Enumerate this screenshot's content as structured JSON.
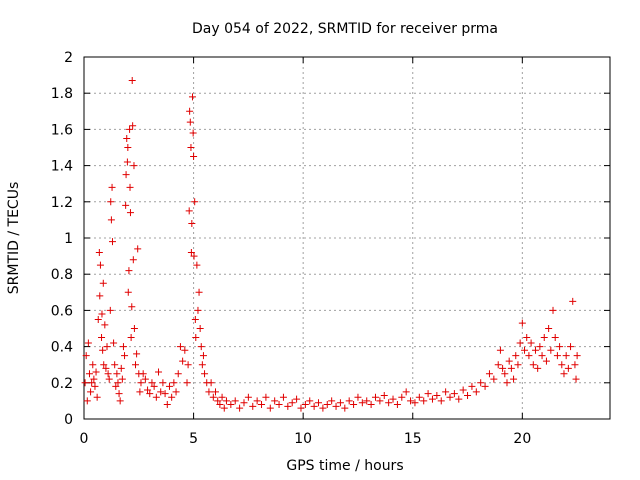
{
  "chart_data": {
    "type": "scatter",
    "title": "Day 054 of 2022, SRMTID for receiver prma",
    "xlabel": "GPS time / hours",
    "ylabel": "SRMTID / TECUs",
    "xlim": [
      0,
      24
    ],
    "ylim": [
      0,
      2
    ],
    "xticks": [
      0,
      5,
      10,
      15,
      20
    ],
    "xtick_labels": [
      "0",
      "5",
      "10",
      "15",
      "20"
    ],
    "yticks": [
      0,
      0.2,
      0.4,
      0.6,
      0.8,
      1,
      1.2,
      1.4,
      1.6,
      1.8,
      2
    ],
    "ytick_labels": [
      "0",
      "0.2",
      "0.4",
      "0.6",
      "0.8",
      "1",
      "1.2",
      "1.4",
      "1.6",
      "1.8",
      "2"
    ],
    "grid": true,
    "marker": "+",
    "colors": {
      "series": "#e00000"
    },
    "series": [
      {
        "name": "SRMTID",
        "points": [
          [
            0.05,
            0.2
          ],
          [
            0.1,
            0.35
          ],
          [
            0.15,
            0.1
          ],
          [
            0.2,
            0.42
          ],
          [
            0.25,
            0.25
          ],
          [
            0.3,
            0.15
          ],
          [
            0.35,
            0.2
          ],
          [
            0.4,
            0.3
          ],
          [
            0.45,
            0.22
          ],
          [
            0.5,
            0.18
          ],
          [
            0.55,
            0.26
          ],
          [
            0.6,
            0.12
          ],
          [
            0.65,
            0.55
          ],
          [
            0.7,
            0.92
          ],
          [
            0.72,
            0.68
          ],
          [
            0.75,
            0.85
          ],
          [
            0.8,
            0.45
          ],
          [
            0.82,
            0.58
          ],
          [
            0.85,
            0.38
          ],
          [
            0.88,
            0.75
          ],
          [
            0.9,
            0.3
          ],
          [
            0.95,
            0.52
          ],
          [
            1.0,
            0.28
          ],
          [
            1.05,
            0.4
          ],
          [
            1.1,
            0.25
          ],
          [
            1.15,
            0.22
          ],
          [
            1.2,
            0.6
          ],
          [
            1.22,
            1.2
          ],
          [
            1.25,
            1.1
          ],
          [
            1.28,
            1.28
          ],
          [
            1.3,
            0.98
          ],
          [
            1.35,
            0.42
          ],
          [
            1.4,
            0.3
          ],
          [
            1.45,
            0.18
          ],
          [
            1.5,
            0.25
          ],
          [
            1.55,
            0.2
          ],
          [
            1.6,
            0.14
          ],
          [
            1.65,
            0.1
          ],
          [
            1.7,
            0.28
          ],
          [
            1.75,
            0.22
          ],
          [
            1.8,
            0.4
          ],
          [
            1.85,
            0.35
          ],
          [
            1.9,
            1.18
          ],
          [
            1.92,
            1.35
          ],
          [
            1.95,
            1.55
          ],
          [
            1.98,
            1.42
          ],
          [
            2.0,
            1.5
          ],
          [
            2.02,
            0.7
          ],
          [
            2.05,
            0.82
          ],
          [
            2.08,
            1.6
          ],
          [
            2.1,
            1.28
          ],
          [
            2.12,
            1.14
          ],
          [
            2.15,
            0.45
          ],
          [
            2.18,
            0.62
          ],
          [
            2.2,
            1.87
          ],
          [
            2.22,
            1.62
          ],
          [
            2.25,
            0.88
          ],
          [
            2.28,
            1.4
          ],
          [
            2.3,
            0.5
          ],
          [
            2.35,
            0.3
          ],
          [
            2.4,
            0.36
          ],
          [
            2.45,
            0.94
          ],
          [
            2.5,
            0.25
          ],
          [
            2.55,
            0.15
          ],
          [
            2.6,
            0.2
          ],
          [
            2.7,
            0.25
          ],
          [
            2.8,
            0.22
          ],
          [
            2.9,
            0.16
          ],
          [
            3.0,
            0.14
          ],
          [
            3.1,
            0.2
          ],
          [
            3.2,
            0.18
          ],
          [
            3.3,
            0.12
          ],
          [
            3.4,
            0.26
          ],
          [
            3.5,
            0.15
          ],
          [
            3.6,
            0.2
          ],
          [
            3.7,
            0.14
          ],
          [
            3.8,
            0.08
          ],
          [
            3.9,
            0.18
          ],
          [
            4.0,
            0.12
          ],
          [
            4.1,
            0.2
          ],
          [
            4.2,
            0.15
          ],
          [
            4.3,
            0.25
          ],
          [
            4.4,
            0.4
          ],
          [
            4.5,
            0.32
          ],
          [
            4.6,
            0.38
          ],
          [
            4.7,
            0.2
          ],
          [
            4.75,
            0.3
          ],
          [
            4.8,
            1.15
          ],
          [
            4.82,
            1.7
          ],
          [
            4.85,
            1.64
          ],
          [
            4.88,
            1.5
          ],
          [
            4.9,
            0.92
          ],
          [
            4.92,
            1.08
          ],
          [
            4.95,
            1.78
          ],
          [
            4.98,
            1.58
          ],
          [
            5.0,
            1.45
          ],
          [
            5.02,
            0.9
          ],
          [
            5.05,
            1.2
          ],
          [
            5.08,
            0.55
          ],
          [
            5.1,
            0.45
          ],
          [
            5.15,
            0.85
          ],
          [
            5.2,
            0.6
          ],
          [
            5.25,
            0.7
          ],
          [
            5.3,
            0.5
          ],
          [
            5.35,
            0.4
          ],
          [
            5.4,
            0.3
          ],
          [
            5.45,
            0.35
          ],
          [
            5.5,
            0.25
          ],
          [
            5.6,
            0.2
          ],
          [
            5.7,
            0.15
          ],
          [
            5.8,
            0.2
          ],
          [
            5.9,
            0.12
          ],
          [
            6.0,
            0.15
          ],
          [
            6.1,
            0.1
          ],
          [
            6.2,
            0.08
          ],
          [
            6.3,
            0.12
          ],
          [
            6.4,
            0.06
          ],
          [
            6.5,
            0.1
          ],
          [
            6.7,
            0.08
          ],
          [
            6.9,
            0.1
          ],
          [
            7.1,
            0.06
          ],
          [
            7.3,
            0.09
          ],
          [
            7.5,
            0.12
          ],
          [
            7.7,
            0.07
          ],
          [
            7.9,
            0.1
          ],
          [
            8.1,
            0.08
          ],
          [
            8.3,
            0.12
          ],
          [
            8.5,
            0.06
          ],
          [
            8.7,
            0.1
          ],
          [
            8.9,
            0.08
          ],
          [
            9.1,
            0.12
          ],
          [
            9.3,
            0.07
          ],
          [
            9.5,
            0.09
          ],
          [
            9.7,
            0.11
          ],
          [
            9.9,
            0.06
          ],
          [
            10.1,
            0.08
          ],
          [
            10.3,
            0.1
          ],
          [
            10.5,
            0.07
          ],
          [
            10.7,
            0.09
          ],
          [
            10.9,
            0.06
          ],
          [
            11.1,
            0.08
          ],
          [
            11.3,
            0.1
          ],
          [
            11.5,
            0.07
          ],
          [
            11.7,
            0.09
          ],
          [
            11.9,
            0.06
          ],
          [
            12.1,
            0.1
          ],
          [
            12.3,
            0.08
          ],
          [
            12.5,
            0.12
          ],
          [
            12.7,
            0.09
          ],
          [
            12.9,
            0.1
          ],
          [
            13.1,
            0.08
          ],
          [
            13.3,
            0.12
          ],
          [
            13.5,
            0.1
          ],
          [
            13.7,
            0.13
          ],
          [
            13.9,
            0.09
          ],
          [
            14.1,
            0.11
          ],
          [
            14.3,
            0.08
          ],
          [
            14.5,
            0.12
          ],
          [
            14.7,
            0.15
          ],
          [
            14.9,
            0.1
          ],
          [
            15.1,
            0.09
          ],
          [
            15.3,
            0.12
          ],
          [
            15.5,
            0.1
          ],
          [
            15.7,
            0.14
          ],
          [
            15.9,
            0.11
          ],
          [
            16.1,
            0.13
          ],
          [
            16.3,
            0.1
          ],
          [
            16.5,
            0.15
          ],
          [
            16.7,
            0.12
          ],
          [
            16.9,
            0.14
          ],
          [
            17.1,
            0.11
          ],
          [
            17.3,
            0.16
          ],
          [
            17.5,
            0.13
          ],
          [
            17.7,
            0.18
          ],
          [
            17.9,
            0.15
          ],
          [
            18.1,
            0.2
          ],
          [
            18.3,
            0.18
          ],
          [
            18.5,
            0.25
          ],
          [
            18.7,
            0.22
          ],
          [
            18.9,
            0.3
          ],
          [
            19.0,
            0.38
          ],
          [
            19.1,
            0.28
          ],
          [
            19.2,
            0.25
          ],
          [
            19.3,
            0.2
          ],
          [
            19.4,
            0.32
          ],
          [
            19.5,
            0.28
          ],
          [
            19.6,
            0.22
          ],
          [
            19.7,
            0.35
          ],
          [
            19.8,
            0.3
          ],
          [
            19.9,
            0.42
          ],
          [
            20.0,
            0.53
          ],
          [
            20.1,
            0.38
          ],
          [
            20.2,
            0.45
          ],
          [
            20.3,
            0.35
          ],
          [
            20.4,
            0.42
          ],
          [
            20.5,
            0.3
          ],
          [
            20.6,
            0.38
          ],
          [
            20.7,
            0.28
          ],
          [
            20.8,
            0.4
          ],
          [
            20.9,
            0.35
          ],
          [
            21.0,
            0.45
          ],
          [
            21.1,
            0.32
          ],
          [
            21.2,
            0.5
          ],
          [
            21.3,
            0.38
          ],
          [
            21.4,
            0.6
          ],
          [
            21.5,
            0.45
          ],
          [
            21.6,
            0.35
          ],
          [
            21.7,
            0.4
          ],
          [
            21.8,
            0.3
          ],
          [
            21.9,
            0.25
          ],
          [
            22.0,
            0.35
          ],
          [
            22.1,
            0.28
          ],
          [
            22.2,
            0.4
          ],
          [
            22.3,
            0.65
          ],
          [
            22.4,
            0.3
          ],
          [
            22.45,
            0.22
          ],
          [
            22.5,
            0.35
          ]
        ]
      }
    ]
  }
}
